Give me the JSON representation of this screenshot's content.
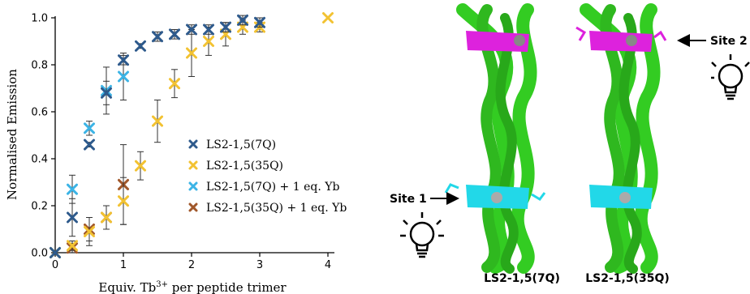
{
  "chart_data": {
    "type": "scatter",
    "xlabel": "Equiv. Tb3+ per peptide trimer",
    "xlabel_parts": {
      "pre": "Equiv. Tb",
      "sup": "3+",
      "post": " per peptide trimer"
    },
    "ylabel": "Normalised Emission",
    "xlim": [
      0,
      4
    ],
    "ylim": [
      0,
      1.0
    ],
    "xticks": [
      "0",
      "1",
      "2",
      "3",
      "4"
    ],
    "yticks": [
      "0.0",
      "0.2",
      "0.4",
      "0.6",
      "0.8",
      "1.0"
    ],
    "grid": false,
    "legend_position": "center-right",
    "series": [
      {
        "name": "LS2-1,5(7Q)",
        "color": "#2e5a8c",
        "x": [
          0,
          0.25,
          0.5,
          0.75,
          1.0,
          1.25,
          1.5,
          1.75,
          2.0,
          2.25,
          2.5,
          2.75,
          3.0
        ],
        "y": [
          0.0,
          0.15,
          0.46,
          0.68,
          0.82,
          0.88,
          0.92,
          0.93,
          0.95,
          0.95,
          0.96,
          0.99,
          0.98
        ],
        "err": [
          0.0,
          0.08,
          0.01,
          0.05,
          0.02,
          0.01,
          0.02,
          0.02,
          0.02,
          0.02,
          0.02,
          0.02,
          0.02
        ]
      },
      {
        "name": "LS2-1,5(35Q)",
        "color": "#f2c232",
        "x": [
          0,
          0.25,
          0.5,
          0.75,
          1.0,
          1.25,
          1.5,
          1.75,
          2.0,
          2.25,
          2.5,
          2.75,
          3.0,
          4.0
        ],
        "y": [
          0.0,
          0.03,
          0.09,
          0.15,
          0.22,
          0.37,
          0.56,
          0.72,
          0.85,
          0.9,
          0.93,
          0.96,
          0.96,
          1.0
        ],
        "err": [
          0.0,
          0.02,
          0.06,
          0.05,
          0.1,
          0.06,
          0.09,
          0.06,
          0.1,
          0.06,
          0.05,
          0.03,
          0.02,
          0.0
        ]
      },
      {
        "name": "LS2-1,5(7Q) + 1 eq. Yb",
        "color": "#3cb4e6",
        "x": [
          0,
          0.25,
          0.5,
          0.75,
          1.0
        ],
        "y": [
          0.0,
          0.27,
          0.53,
          0.69,
          0.75
        ],
        "err": [
          0.0,
          0.06,
          0.03,
          0.1,
          0.1
        ]
      },
      {
        "name": "LS2-1,5(35Q) + 1 eq. Yb",
        "color": "#a0572a",
        "x": [
          0,
          0.25,
          0.5,
          0.75,
          1.0
        ],
        "y": [
          0.0,
          0.02,
          0.1,
          0.15,
          0.29
        ],
        "err": [
          0.0,
          0.02,
          0.05,
          0.05,
          0.17
        ]
      }
    ]
  },
  "illustration": {
    "site1_label": "Site 1",
    "site2_label": "Site 2",
    "protein_left_label": "LS2-1,5(7Q)",
    "protein_right_label": "LS2-1,5(35Q)",
    "helix_color": "#33cc22",
    "site1_color": "#22d8e8",
    "site2_color": "#dd22dd",
    "ion_color": "#888888",
    "icons": [
      "lightbulb-icon",
      "arrow-right-icon",
      "arrow-left-icon"
    ]
  }
}
